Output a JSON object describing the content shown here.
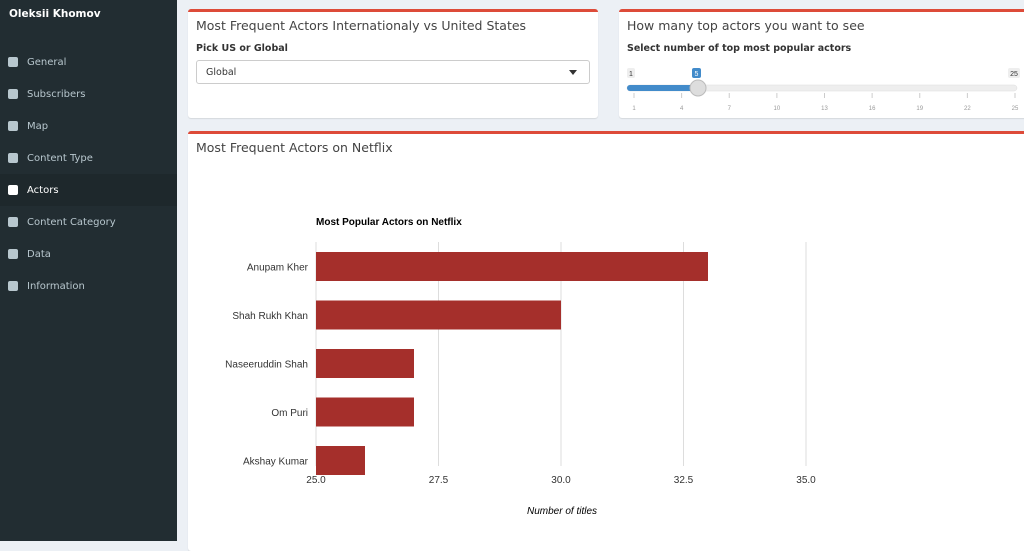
{
  "sidebar": {
    "title": "Oleksii Khomov",
    "items": [
      {
        "label": "General",
        "icon": "file-icon"
      },
      {
        "label": "Subscribers",
        "icon": "users-icon"
      },
      {
        "label": "Map",
        "icon": "globe-icon"
      },
      {
        "label": "Content Type",
        "icon": "desktop-icon"
      },
      {
        "label": "Actors",
        "icon": "id-card-icon",
        "active": true
      },
      {
        "label": "Content Category",
        "icon": "video-icon"
      },
      {
        "label": "Data",
        "icon": "database-icon"
      },
      {
        "label": "Information",
        "icon": "book-icon"
      }
    ]
  },
  "filter_box": {
    "title": "Most Frequent Actors Internationaly vs United States",
    "label": "Pick US or Global",
    "selected": "Global"
  },
  "slider_box": {
    "title": "How many top actors you want to see",
    "label": "Select number of top most popular actors",
    "min": "1",
    "max": "25",
    "value": "5",
    "ticks": [
      "1",
      "4",
      "7",
      "10",
      "13",
      "16",
      "19",
      "22",
      "25"
    ]
  },
  "chart_box": {
    "title": "Most Frequent Actors on Netflix"
  },
  "colors": {
    "accent": "#dd4b39",
    "bar": "#a52f2b",
    "slider": "#428bca"
  },
  "chart_data": {
    "type": "bar",
    "orientation": "horizontal",
    "title": "Most Popular Actors on Netflix",
    "xlabel": "Number of titles",
    "ylabel": "",
    "categories": [
      "Anupam Kher",
      "Shah Rukh Khan",
      "Naseeruddin Shah",
      "Om Puri",
      "Akshay Kumar"
    ],
    "values": [
      33,
      30,
      27,
      27,
      26
    ],
    "xlim": [
      25,
      35
    ],
    "xticks": [
      "25.0",
      "27.5",
      "30.0",
      "32.5",
      "35.0"
    ],
    "grid": true
  }
}
